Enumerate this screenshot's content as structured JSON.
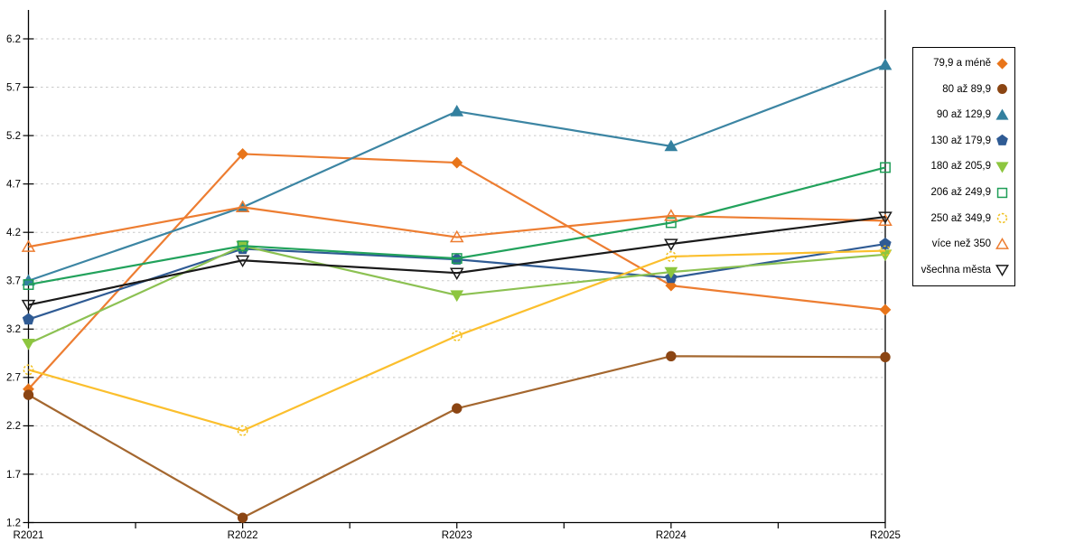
{
  "chart_data": {
    "type": "line",
    "title": "",
    "xlabel": "",
    "ylabel": "",
    "grid": true,
    "legend_position": "right",
    "categories": [
      "R2021",
      "R2022",
      "R2023",
      "R2024",
      "R2025"
    ],
    "y_axis": {
      "min": 1.2,
      "max": 6.2,
      "step": 0.5,
      "tick_labels": [
        "6.2",
        "5.7",
        "5.2",
        "4.7",
        "4.2",
        "3.7",
        "3.2",
        "2.7",
        "2.2",
        "1.7",
        "1.2"
      ]
    },
    "series": [
      {
        "name": "79,9 a méně",
        "marker": "diamond",
        "filled": true,
        "dashed_marker": false,
        "color": "#ED7D31",
        "marker_color": "#E8751A",
        "values": [
          2.58,
          5.01,
          4.92,
          3.65,
          3.4
        ]
      },
      {
        "name": "80 až 89,9",
        "marker": "circle",
        "filled": true,
        "dashed_marker": false,
        "color": "#A4672F",
        "marker_color": "#8B4513",
        "values": [
          2.52,
          1.25,
          2.38,
          2.92,
          2.91
        ]
      },
      {
        "name": "90 až 129,9",
        "marker": "triangle-up",
        "filled": true,
        "dashed_marker": false,
        "color": "#3C85A3",
        "marker_color": "#33809F",
        "values": [
          3.7,
          4.46,
          5.45,
          5.09,
          5.93
        ]
      },
      {
        "name": "130 až 179,9",
        "marker": "pentagon",
        "filled": true,
        "dashed_marker": false,
        "color": "#2F5B94",
        "marker_color": "#2F5B94",
        "values": [
          3.3,
          4.03,
          3.92,
          3.73,
          4.08
        ]
      },
      {
        "name": "180 až 205,9",
        "marker": "triangle-down",
        "filled": true,
        "dashed_marker": false,
        "color": "#8CC152",
        "marker_color": "#8DC63F",
        "values": [
          3.05,
          4.06,
          3.55,
          3.79,
          3.97
        ]
      },
      {
        "name": "206 až 249,9",
        "marker": "square",
        "filled": false,
        "dashed_marker": false,
        "color": "#22A25C",
        "marker_color": "#1E9E57",
        "values": [
          3.66,
          4.06,
          3.93,
          4.3,
          4.87
        ]
      },
      {
        "name": "250 až 349,9",
        "marker": "circle",
        "filled": false,
        "dashed_marker": true,
        "color": "#FBBF2D",
        "marker_color": "#F0C01E",
        "values": [
          2.78,
          2.15,
          3.13,
          3.95,
          4.01
        ]
      },
      {
        "name": "více než 350",
        "marker": "triangle-up",
        "filled": false,
        "dashed_marker": false,
        "color": "#ED7D31",
        "marker_color": "#ED7D31",
        "values": [
          4.05,
          4.46,
          4.15,
          4.37,
          4.32
        ]
      },
      {
        "name": "všechna města",
        "marker": "triangle-down",
        "filled": false,
        "dashed_marker": false,
        "color": "#1A1A1A",
        "marker_color": "#1A1A1A",
        "values": [
          3.45,
          3.91,
          3.78,
          4.08,
          4.36
        ]
      }
    ]
  }
}
